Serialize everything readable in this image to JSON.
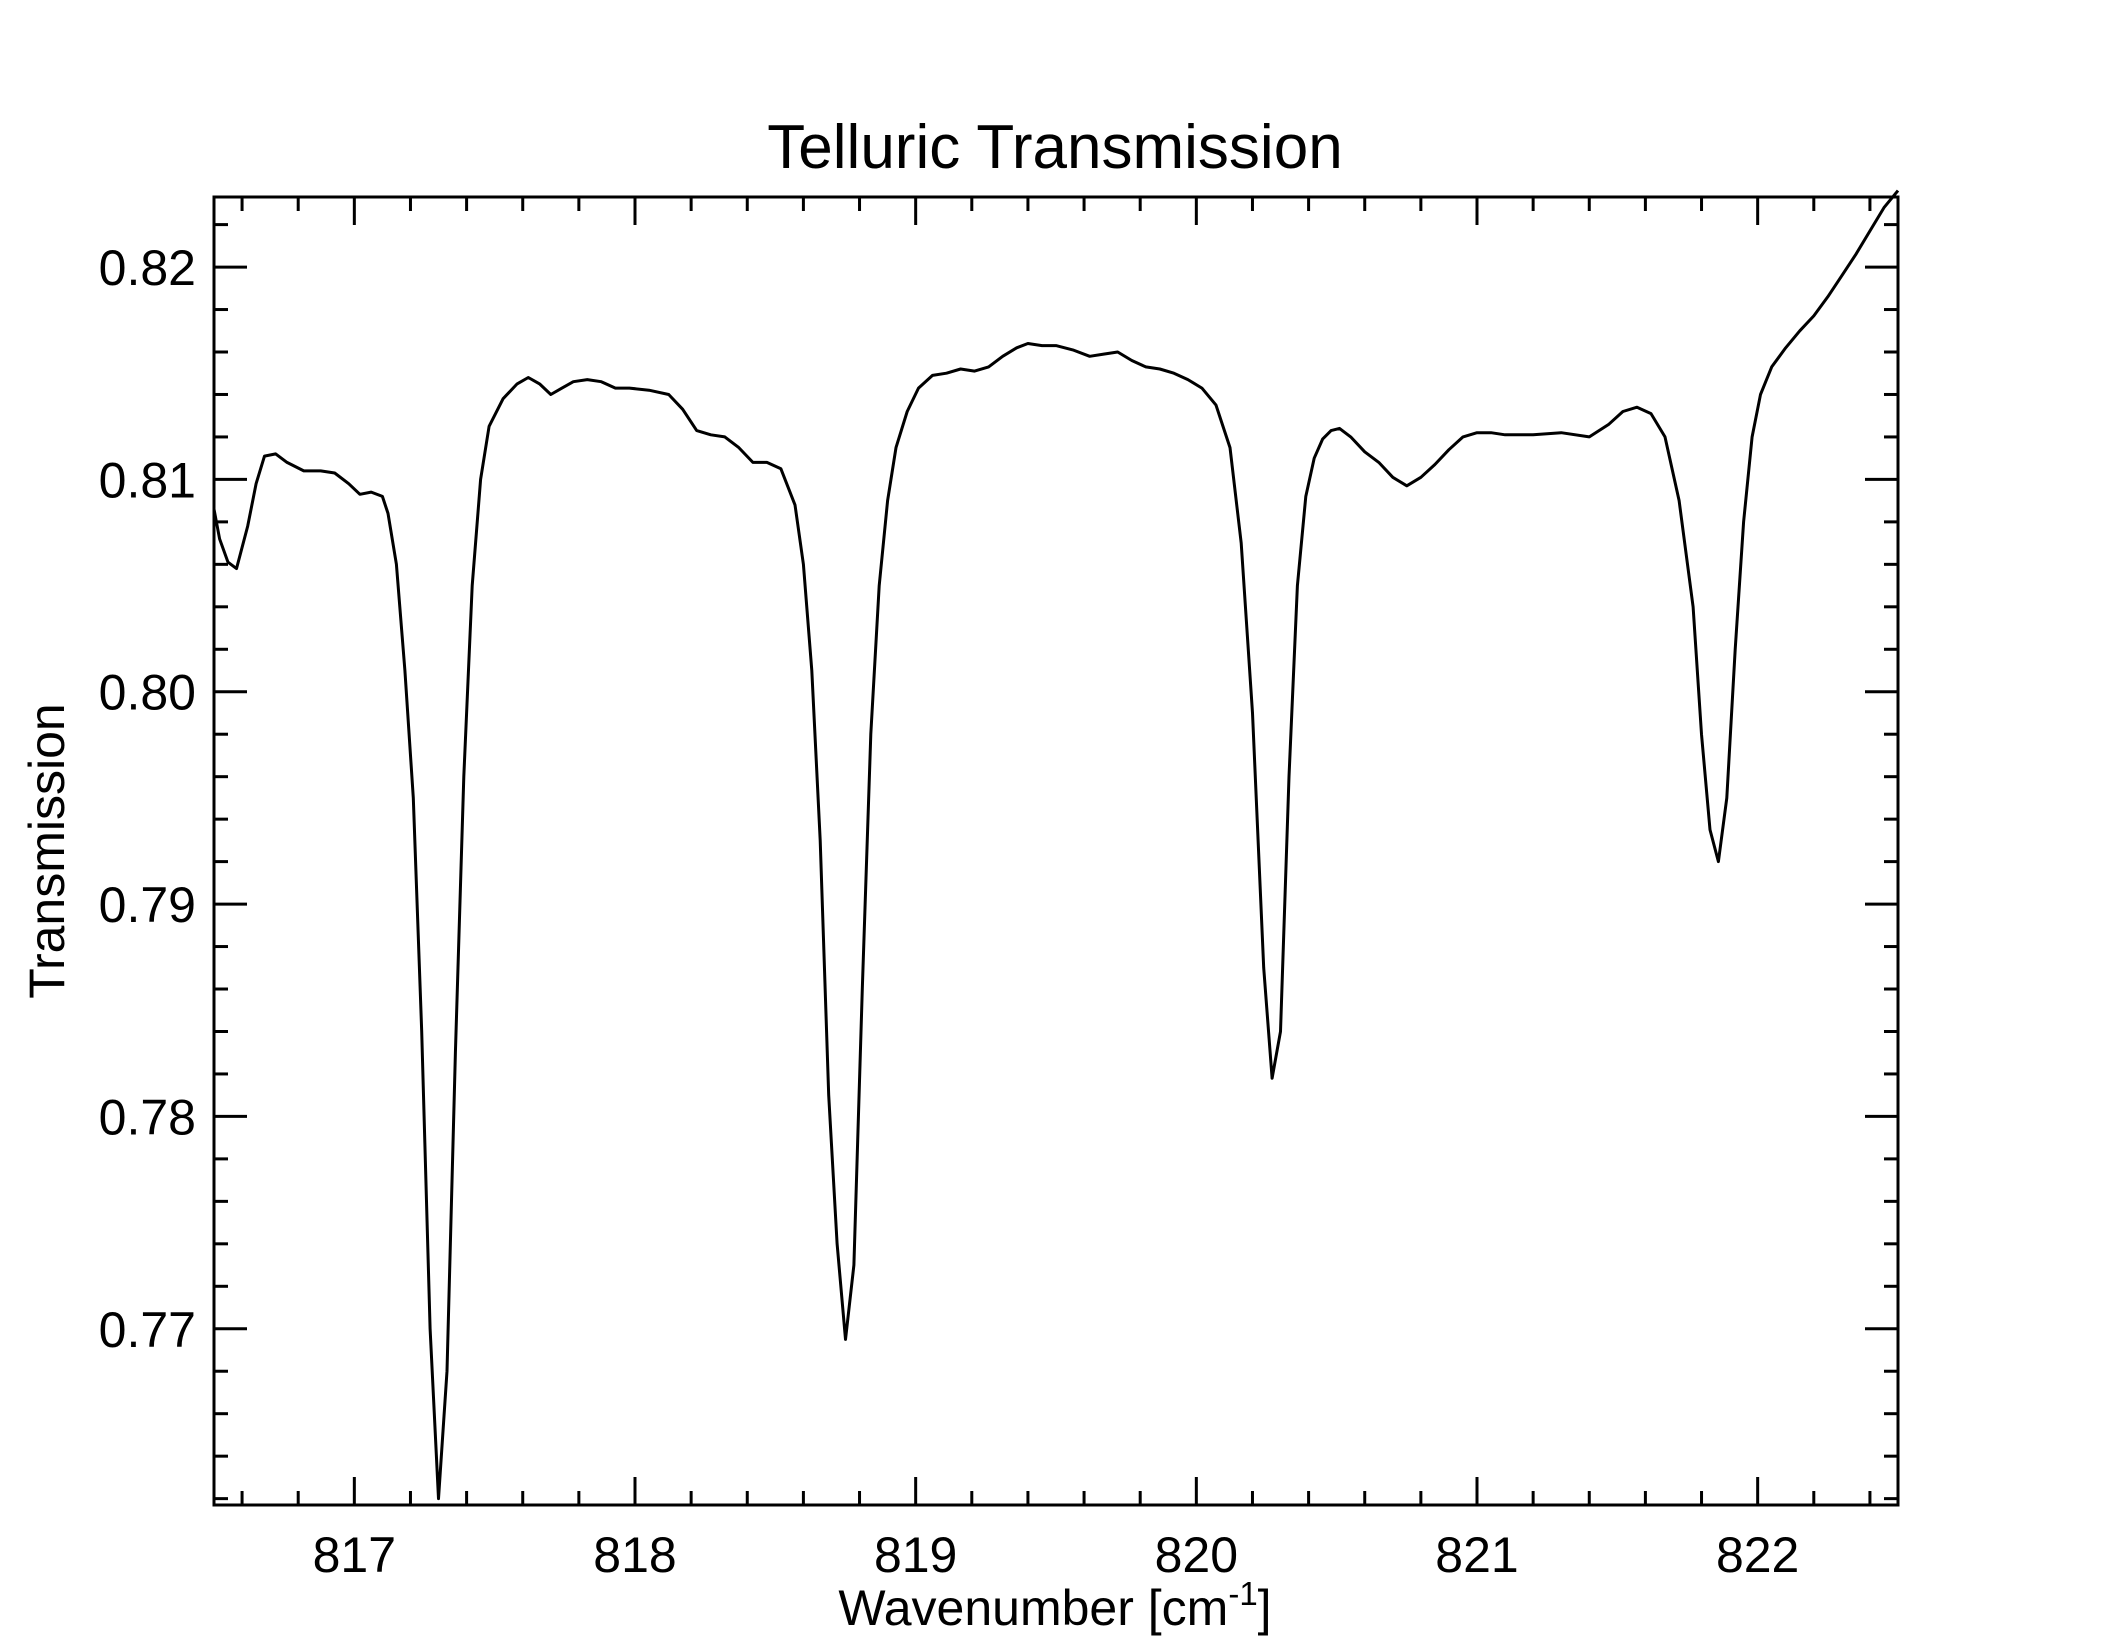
{
  "chart_data": {
    "type": "line",
    "title": "Telluric Transmission",
    "xlabel": {
      "main": "Wavenumber [cm",
      "sup": "-1",
      "tail": "]"
    },
    "ylabel": "Transmission",
    "xlim": [
      816.5,
      822.5
    ],
    "ylim": [
      0.7617,
      0.8233
    ],
    "x_ticks": [
      817,
      818,
      819,
      820,
      821,
      822
    ],
    "x_tick_labels": [
      "817",
      "818",
      "819",
      "820",
      "821",
      "822"
    ],
    "x_minor_step": 0.2,
    "y_ticks": [
      0.77,
      0.78,
      0.79,
      0.8,
      0.81,
      0.82
    ],
    "y_tick_labels": [
      "0.77",
      "0.78",
      "0.79",
      "0.80",
      "0.81",
      "0.82"
    ],
    "y_minor_step": 0.002,
    "grid": false,
    "line_color": "#000000",
    "series": [
      {
        "x": [
          816.5,
          816.52,
          816.55,
          816.58,
          816.62,
          816.65,
          816.68,
          816.72,
          816.76,
          816.82,
          816.88,
          816.93,
          816.98,
          817.02,
          817.06,
          817.1,
          817.12,
          817.15,
          817.18,
          817.21,
          817.24,
          817.27,
          817.3,
          817.33,
          817.36,
          817.39,
          817.42,
          817.45,
          817.48,
          817.53,
          817.58,
          817.62,
          817.66,
          817.7,
          817.74,
          817.78,
          817.83,
          817.88,
          817.93,
          817.98,
          818.05,
          818.12,
          818.17,
          818.22,
          818.27,
          818.32,
          818.37,
          818.42,
          818.47,
          818.52,
          818.57,
          818.6,
          818.63,
          818.66,
          818.69,
          818.72,
          818.75,
          818.78,
          818.81,
          818.84,
          818.87,
          818.9,
          818.93,
          818.97,
          819.01,
          819.06,
          819.11,
          819.16,
          819.21,
          819.26,
          819.31,
          819.36,
          819.4,
          819.45,
          819.5,
          819.56,
          819.62,
          819.67,
          819.72,
          819.77,
          819.82,
          819.87,
          819.92,
          819.97,
          820.02,
          820.07,
          820.12,
          820.16,
          820.2,
          820.24,
          820.27,
          820.3,
          820.33,
          820.36,
          820.39,
          820.42,
          820.45,
          820.48,
          820.51,
          820.55,
          820.6,
          820.65,
          820.7,
          820.75,
          820.8,
          820.85,
          820.9,
          820.95,
          821.0,
          821.05,
          821.1,
          821.15,
          821.2,
          821.3,
          821.4,
          821.47,
          821.52,
          821.57,
          821.62,
          821.67,
          821.72,
          821.77,
          821.8,
          821.83,
          821.86,
          821.89,
          821.92,
          821.95,
          821.98,
          822.01,
          822.05,
          822.1,
          822.15,
          822.2,
          822.25,
          822.3,
          822.35,
          822.4,
          822.45,
          822.5
        ],
        "y": [
          0.8086,
          0.8072,
          0.8061,
          0.8058,
          0.8078,
          0.8098,
          0.8111,
          0.8112,
          0.8108,
          0.8104,
          0.8104,
          0.8103,
          0.8098,
          0.8093,
          0.8094,
          0.8092,
          0.8084,
          0.806,
          0.801,
          0.795,
          0.784,
          0.77,
          0.762,
          0.768,
          0.783,
          0.796,
          0.805,
          0.81,
          0.8125,
          0.8138,
          0.8145,
          0.8148,
          0.8145,
          0.814,
          0.8143,
          0.8146,
          0.8147,
          0.8146,
          0.8143,
          0.8143,
          0.8142,
          0.814,
          0.8133,
          0.8123,
          0.8121,
          0.812,
          0.8115,
          0.8108,
          0.8108,
          0.8105,
          0.8088,
          0.806,
          0.801,
          0.793,
          0.781,
          0.774,
          0.7695,
          0.773,
          0.786,
          0.798,
          0.805,
          0.809,
          0.8115,
          0.8132,
          0.8143,
          0.8149,
          0.815,
          0.8152,
          0.8151,
          0.8153,
          0.8158,
          0.8162,
          0.8164,
          0.8163,
          0.8163,
          0.8161,
          0.8158,
          0.8159,
          0.816,
          0.8156,
          0.8153,
          0.8152,
          0.815,
          0.8147,
          0.8143,
          0.8135,
          0.8115,
          0.807,
          0.799,
          0.787,
          0.7818,
          0.784,
          0.796,
          0.805,
          0.8092,
          0.811,
          0.8119,
          0.8123,
          0.8124,
          0.812,
          0.8113,
          0.8108,
          0.8101,
          0.8097,
          0.8101,
          0.8107,
          0.8114,
          0.812,
          0.8122,
          0.8122,
          0.8121,
          0.8121,
          0.8121,
          0.8122,
          0.812,
          0.8126,
          0.8132,
          0.8134,
          0.8131,
          0.812,
          0.809,
          0.804,
          0.798,
          0.7935,
          0.792,
          0.795,
          0.802,
          0.808,
          0.812,
          0.814,
          0.8153,
          0.8162,
          0.817,
          0.8177,
          0.8186,
          0.8196,
          0.8206,
          0.8217,
          0.8228,
          0.8236
        ]
      }
    ]
  }
}
